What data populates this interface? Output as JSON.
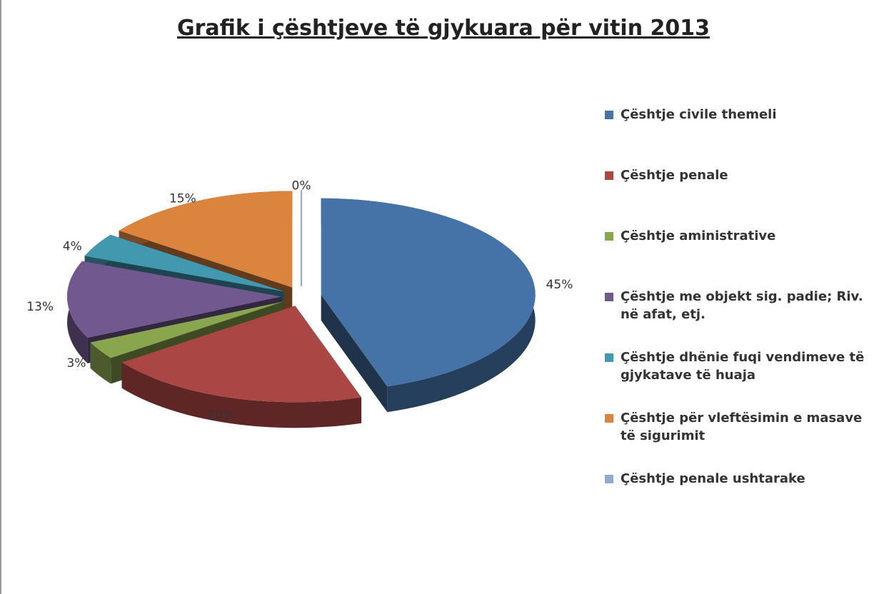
{
  "chart_data": {
    "type": "pie",
    "title": "Grafik i çështjeve të gjykuara për vitin 2013",
    "categories": [
      "Çështje civile themeli",
      "Çështje penale",
      "Çështje aministrative",
      "Çështje me objekt sig. padie; Riv. në afat, etj.",
      "Çështje dhënie fuqi vendimeve të gjykatave të huaja",
      "Çështje për vleftësimin e masave të sigurimit",
      "Çështje penale ushtarake"
    ],
    "values": [
      45,
      20,
      3,
      13,
      4,
      15,
      0
    ],
    "value_labels": [
      "45%",
      "20%",
      "3%",
      "13%",
      "4%",
      "15%",
      "0%"
    ],
    "colors": [
      "#4572a7",
      "#aa4643",
      "#89a54e",
      "#71588f",
      "#4198af",
      "#db843d",
      "#93a9cf"
    ],
    "legend": "right"
  }
}
